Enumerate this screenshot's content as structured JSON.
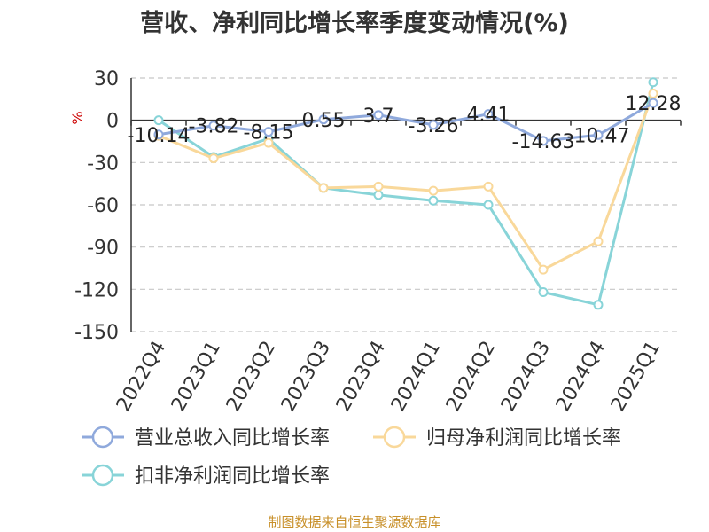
{
  "title": "营收、净利同比增长率季度变动情况(%)",
  "footer": "制图数据来自恒生聚源数据库",
  "chart_data": {
    "type": "line",
    "ylabel": "%",
    "ylim": [
      -150,
      30
    ],
    "yticks": [
      30,
      0,
      -30,
      -60,
      -90,
      -120,
      -150
    ],
    "grid": true,
    "legend_position": "bottom",
    "categories": [
      "2022Q4",
      "2023Q1",
      "2023Q2",
      "2023Q3",
      "2023Q4",
      "2024Q1",
      "2024Q2",
      "2024Q3",
      "2024Q4",
      "2025Q1"
    ],
    "series": [
      {
        "name": "营业总收入同比增长率",
        "color": "#8fa9dc",
        "values": [
          -10.14,
          -3.82,
          -8.15,
          0.55,
          3.7,
          -3.26,
          4.41,
          -14.63,
          -10.47,
          12.28
        ],
        "labels": [
          "-10.14",
          "-3.82",
          "-8.15",
          "0.55",
          "3.7",
          "-3.26",
          "4.41",
          "-14.63",
          "-10.47",
          "12.28"
        ]
      },
      {
        "name": "归母净利润同比增长率",
        "color": "#f9d89a",
        "values": [
          -11,
          -27,
          -16,
          -48,
          -47,
          -50,
          -47,
          -106,
          -86,
          19
        ]
      },
      {
        "name": "扣非净利润同比增长率",
        "color": "#88d4d8",
        "values": [
          0,
          -26,
          -13,
          -48,
          -53,
          -57,
          -60,
          -122,
          -131,
          27
        ]
      }
    ]
  }
}
